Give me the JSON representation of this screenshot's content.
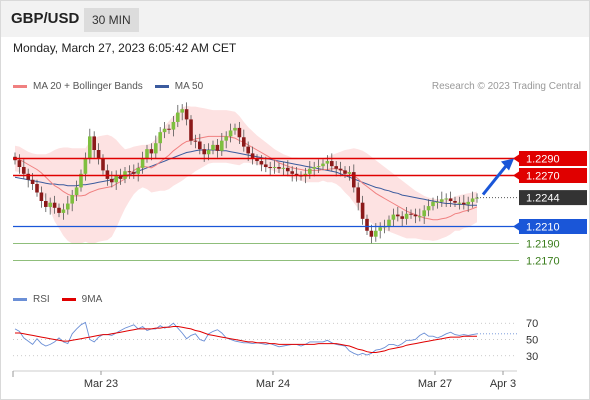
{
  "header": {
    "pair": "GBP/USD",
    "interval": "30 MIN"
  },
  "date_line": "Monday, March 27, 2023 6:05:42 AM CET",
  "legend": {
    "bollinger": "MA 20 + Bollinger Bands",
    "ma50": "MA 50",
    "rsi": "RSI",
    "rsi_ma": "9MA"
  },
  "research_text": "Research © 2023 Trading Central",
  "colors": {
    "resistance": "#e00000",
    "support": "#1a56d8",
    "target": "#6aa84f",
    "current": "#333333",
    "candle_up": "#7fbf3f",
    "candle_down": "#8b1a1a",
    "bollinger_fill": "#fde2e2",
    "ma20": "#f08080",
    "ma50": "#3b5b9e",
    "rsi": "#6b8fd6",
    "rsi_ma": "#e00000",
    "arrow": "#1a56d8"
  },
  "chart_data": [
    {
      "type": "candlestick",
      "title": "GBP/USD",
      "ylim": [
        1.214,
        1.236
      ],
      "x_labels": [
        "Mar 23",
        "Mar 24",
        "Mar 27",
        "Apr 3"
      ],
      "levels": [
        {
          "value": 1.229,
          "label": "1.2290",
          "kind": "resistance"
        },
        {
          "value": 1.227,
          "label": "1.2270",
          "kind": "resistance"
        },
        {
          "value": 1.2244,
          "label": "1.2244",
          "kind": "current"
        },
        {
          "value": 1.221,
          "label": "1.2210",
          "kind": "support"
        },
        {
          "value": 1.219,
          "label": "1.2190",
          "kind": "target"
        },
        {
          "value": 1.217,
          "label": "1.2170",
          "kind": "target"
        }
      ],
      "forecast": {
        "from": 1.2244,
        "to": 1.229
      },
      "close": [
        1.2288,
        1.228,
        1.2272,
        1.2265,
        1.226,
        1.225,
        1.224,
        1.2233,
        1.2238,
        1.2232,
        1.2226,
        1.223,
        1.2237,
        1.2247,
        1.2256,
        1.2272,
        1.229,
        1.2316,
        1.23,
        1.229,
        1.2276,
        1.2266,
        1.2262,
        1.227,
        1.2266,
        1.2275,
        1.2274,
        1.2272,
        1.2279,
        1.229,
        1.2301,
        1.2296,
        1.2308,
        1.2321,
        1.2325,
        1.2324,
        1.2333,
        1.2344,
        1.2348,
        1.2336,
        1.2311,
        1.231,
        1.2301,
        1.2295,
        1.23,
        1.2306,
        1.2299,
        1.2311,
        1.2316,
        1.2323,
        1.2326,
        1.2315,
        1.2304,
        1.2296,
        1.229,
        1.2287,
        1.2283,
        1.228,
        1.2279,
        1.228,
        1.2278,
        1.2279,
        1.2275,
        1.2272,
        1.227,
        1.2269,
        1.2272,
        1.2278,
        1.228,
        1.2281,
        1.2284,
        1.2287,
        1.2281,
        1.2278,
        1.2276,
        1.2272,
        1.2274,
        1.2256,
        1.2238,
        1.2219,
        1.2205,
        1.2198,
        1.2205,
        1.2209,
        1.221,
        1.2218,
        1.2224,
        1.2222,
        1.2219,
        1.2225,
        1.2224,
        1.2222,
        1.2222,
        1.2229,
        1.2234,
        1.2239,
        1.2239,
        1.2242,
        1.2243,
        1.224,
        1.2238,
        1.2238,
        1.2236,
        1.2239,
        1.2243,
        1.2244
      ],
      "indicators": {
        "ma20": [
          1.229,
          1.2289,
          1.2286,
          1.2283,
          1.228,
          1.2277,
          1.2273,
          1.2268,
          1.2263,
          1.2258,
          1.2255,
          1.2251,
          1.2248,
          1.2246,
          1.2246,
          1.2246,
          1.2247,
          1.225,
          1.2252,
          1.2254,
          1.2255,
          1.2256,
          1.2257,
          1.226,
          1.2263,
          1.2266,
          1.2271,
          1.2276,
          1.2279,
          1.2281,
          1.228,
          1.2279,
          1.2282,
          1.2286,
          1.229,
          1.2294,
          1.2299,
          1.2303,
          1.2307,
          1.231,
          1.2311,
          1.2313,
          1.2314,
          1.2315,
          1.2316,
          1.2316,
          1.2316,
          1.2316,
          1.2316,
          1.2315,
          1.2314,
          1.2311,
          1.2309,
          1.2306,
          1.2303,
          1.23,
          1.2297,
          1.2294,
          1.2291,
          1.2288,
          1.2285,
          1.2283,
          1.2281,
          1.2279,
          1.2278,
          1.2277,
          1.2276,
          1.2276,
          1.2276,
          1.2276,
          1.2277,
          1.2277,
          1.2278,
          1.2278,
          1.2277,
          1.2275,
          1.2273,
          1.227,
          1.2266,
          1.2261,
          1.2257,
          1.2253,
          1.2249,
          1.2246,
          1.2243,
          1.224,
          1.2237,
          1.2234,
          1.2231,
          1.2228,
          1.2226,
          1.2224,
          1.2222,
          1.222,
          1.2219,
          1.2218,
          1.2218,
          1.2219,
          1.222,
          1.2222,
          1.2225,
          1.2226,
          1.2228,
          1.2229,
          1.2231,
          1.2233
        ],
        "band_upper": [
          1.2305,
          1.2304,
          1.2301,
          1.2298,
          1.2296,
          1.2295,
          1.2295,
          1.2295,
          1.2297,
          1.23,
          1.2302,
          1.2303,
          1.2303,
          1.2302,
          1.2302,
          1.2302,
          1.2302,
          1.231,
          1.2314,
          1.2316,
          1.2317,
          1.2318,
          1.2316,
          1.2312,
          1.2306,
          1.2301,
          1.2302,
          1.2304,
          1.2305,
          1.2306,
          1.2306,
          1.2308,
          1.2313,
          1.232,
          1.2328,
          1.2334,
          1.234,
          1.2345,
          1.235,
          1.2352,
          1.2351,
          1.2351,
          1.235,
          1.2349,
          1.2348,
          1.2347,
          1.2347,
          1.2347,
          1.2347,
          1.2346,
          1.2345,
          1.234,
          1.2333,
          1.2327,
          1.2322,
          1.2317,
          1.2313,
          1.2309,
          1.2305,
          1.2301,
          1.2298,
          1.2295,
          1.2293,
          1.2291,
          1.2291,
          1.229,
          1.229,
          1.229,
          1.229,
          1.229,
          1.229,
          1.2292,
          1.2294,
          1.2296,
          1.2298,
          1.23,
          1.2301,
          1.2302,
          1.2301,
          1.2299,
          1.2296,
          1.2292,
          1.2288,
          1.2284,
          1.228,
          1.2276,
          1.2272,
          1.2268,
          1.2264,
          1.226,
          1.2256,
          1.2252,
          1.2249,
          1.2246,
          1.2244,
          1.2243,
          1.2242,
          1.2242,
          1.2242,
          1.2243,
          1.2245,
          1.2247,
          1.2248,
          1.2249,
          1.225,
          1.2251
        ],
        "band_lower": [
          1.2275,
          1.2274,
          1.2271,
          1.2268,
          1.2264,
          1.2259,
          1.2251,
          1.2241,
          1.2229,
          1.2216,
          1.2208,
          1.2199,
          1.2193,
          1.219,
          1.219,
          1.219,
          1.2192,
          1.219,
          1.219,
          1.2192,
          1.2193,
          1.2194,
          1.2198,
          1.2208,
          1.222,
          1.2231,
          1.224,
          1.2248,
          1.2253,
          1.2256,
          1.2254,
          1.225,
          1.2251,
          1.2252,
          1.2252,
          1.2254,
          1.2258,
          1.2261,
          1.2264,
          1.2268,
          1.2271,
          1.2275,
          1.2278,
          1.2281,
          1.2284,
          1.2285,
          1.2285,
          1.2285,
          1.2285,
          1.2284,
          1.2283,
          1.2282,
          1.2285,
          1.2285,
          1.2284,
          1.2283,
          1.2281,
          1.2279,
          1.2277,
          1.2275,
          1.2272,
          1.2271,
          1.2269,
          1.2267,
          1.2265,
          1.2264,
          1.2262,
          1.2262,
          1.2262,
          1.2262,
          1.2264,
          1.2262,
          1.2262,
          1.226,
          1.2256,
          1.225,
          1.2245,
          1.2238,
          1.2231,
          1.2223,
          1.2218,
          1.2214,
          1.221,
          1.2208,
          1.2206,
          1.2204,
          1.2202,
          1.22,
          1.2198,
          1.2196,
          1.2196,
          1.2196,
          1.2195,
          1.2194,
          1.2194,
          1.2193,
          1.2194,
          1.2196,
          1.2198,
          1.2201,
          1.2205,
          1.2205,
          1.2208,
          1.2209,
          1.2212,
          1.2215
        ],
        "ma50": [
          1.2268,
          1.2267,
          1.2266,
          1.2265,
          1.2264,
          1.2263,
          1.2262,
          1.2261,
          1.226,
          1.226,
          1.2259,
          1.2259,
          1.2258,
          1.2258,
          1.2258,
          1.2259,
          1.2259,
          1.226,
          1.2261,
          1.2262,
          1.2263,
          1.2264,
          1.2265,
          1.2267,
          1.2268,
          1.227,
          1.2271,
          1.2273,
          1.2275,
          1.2277,
          1.2279,
          1.2281,
          1.2283,
          1.2285,
          1.2287,
          1.2289,
          1.2291,
          1.2293,
          1.2295,
          1.2297,
          1.2298,
          1.2299,
          1.23,
          1.23,
          1.23,
          1.23,
          1.23,
          1.2299,
          1.2299,
          1.2298,
          1.2297,
          1.2296,
          1.2295,
          1.2294,
          1.2293,
          1.2292,
          1.2291,
          1.229,
          1.2289,
          1.2288,
          1.2287,
          1.2286,
          1.2285,
          1.2284,
          1.2283,
          1.2282,
          1.2281,
          1.228,
          1.2279,
          1.2278,
          1.2277,
          1.2276,
          1.2275,
          1.2274,
          1.2272,
          1.227,
          1.2268,
          1.2266,
          1.2264,
          1.2262,
          1.226,
          1.2258,
          1.2256,
          1.2255,
          1.2253,
          1.2252,
          1.225,
          1.2249,
          1.2247,
          1.2246,
          1.2245,
          1.2244,
          1.2243,
          1.2242,
          1.2241,
          1.224,
          1.2239,
          1.2238,
          1.2237,
          1.2237,
          1.2236,
          1.2236,
          1.2236,
          1.2235,
          1.2235,
          1.2235
        ]
      }
    },
    {
      "type": "line",
      "title": "RSI",
      "ylim": [
        15,
        85
      ],
      "y_ticks": [
        70,
        50,
        30
      ],
      "series": [
        {
          "name": "RSI",
          "values": [
            63,
            60,
            52,
            48,
            44,
            51,
            45,
            42,
            44,
            47,
            52,
            47,
            45,
            57,
            63,
            68,
            71,
            50,
            47,
            53,
            56,
            56,
            55,
            58,
            61,
            64,
            66,
            68,
            63,
            66,
            61,
            63,
            63,
            67,
            64,
            66,
            70,
            64,
            58,
            51,
            55,
            57,
            50,
            48,
            57,
            60,
            62,
            58,
            52,
            50,
            48,
            47,
            46,
            46,
            45,
            46,
            45,
            44,
            45,
            43,
            41,
            42,
            43,
            44,
            44,
            42,
            44,
            47,
            47,
            47,
            47,
            49,
            46,
            44,
            43,
            42,
            36,
            33,
            31,
            33,
            31,
            33,
            37,
            38,
            40,
            44,
            44,
            42,
            45,
            49,
            49,
            50,
            55,
            58,
            54,
            54,
            52,
            54,
            57,
            59,
            56,
            55,
            56,
            55,
            56,
            57
          ]
        },
        {
          "name": "9MA",
          "values": [
            58,
            58,
            57,
            56,
            55,
            54,
            53,
            52,
            51,
            50,
            49,
            48,
            48,
            49,
            50,
            51,
            52,
            53,
            54,
            55,
            56,
            56,
            57,
            58,
            59,
            60,
            61,
            62,
            63,
            63,
            63,
            63,
            64,
            64,
            65,
            65,
            66,
            66,
            65,
            64,
            63,
            61,
            60,
            58,
            56,
            55,
            54,
            53,
            52,
            51,
            50,
            49,
            48,
            47,
            47,
            46,
            46,
            46,
            45,
            45,
            44,
            44,
            44,
            44,
            44,
            44,
            44,
            44,
            44,
            45,
            45,
            45,
            45,
            45,
            44,
            43,
            42,
            40,
            38,
            37,
            35,
            34,
            34,
            35,
            36,
            38,
            39,
            40,
            41,
            43,
            44,
            45,
            46,
            47,
            48,
            49,
            50,
            51,
            52,
            53,
            53,
            53,
            54,
            54,
            54,
            54
          ]
        }
      ]
    }
  ]
}
